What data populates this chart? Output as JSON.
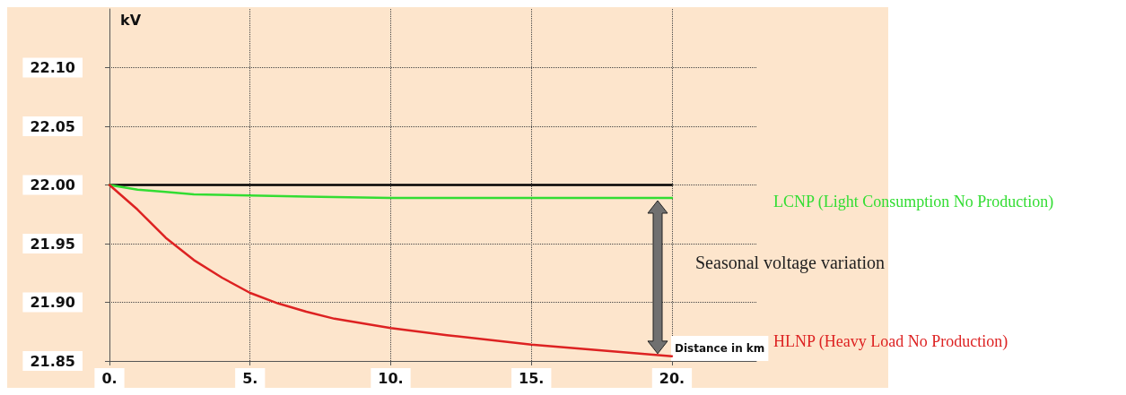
{
  "chart_data": {
    "type": "line",
    "xlabel": "Distance in km",
    "ylabel": "kV",
    "annotations": [
      "Seasonal voltage variation"
    ],
    "xlim": [
      0,
      23
    ],
    "xticks": [
      {
        "value": 0,
        "label": "0."
      },
      {
        "value": 5,
        "label": "5."
      },
      {
        "value": 10,
        "label": "10."
      },
      {
        "value": 15,
        "label": "15."
      },
      {
        "value": 20,
        "label": "20."
      }
    ],
    "ylim": [
      21.85,
      22.15
    ],
    "yticks": [
      {
        "value": 21.85,
        "label": "21.85"
      },
      {
        "value": 21.9,
        "label": "21.90"
      },
      {
        "value": 21.95,
        "label": "21.95"
      },
      {
        "value": 22,
        "label": "22.00"
      },
      {
        "value": 22.05,
        "label": "22.05"
      },
      {
        "value": 22.1,
        "label": "22.10"
      }
    ],
    "grid": true,
    "line_style": "solid",
    "marker": "none",
    "series": [
      {
        "color": "#000000",
        "x": [
          0,
          20
        ],
        "values": [
          22.0,
          22.0
        ]
      },
      {
        "name": "LCNP (Light Consumption No Production)",
        "color": "#33dd33",
        "x": [
          0,
          1,
          2,
          3,
          5,
          7,
          10,
          15,
          20
        ],
        "values": [
          22.0,
          21.996,
          21.994,
          21.992,
          21.991,
          21.99,
          21.989,
          21.989,
          21.989
        ]
      },
      {
        "name": "HLNP (Heavy Load No Production)",
        "color": "#dd2222",
        "x": [
          0,
          1,
          2,
          3,
          4,
          5,
          6,
          7,
          8,
          10,
          12,
          15,
          20
        ],
        "values": [
          22.0,
          21.979,
          21.955,
          21.936,
          21.921,
          21.908,
          21.899,
          21.892,
          21.886,
          21.878,
          21.872,
          21.864,
          21.854
        ]
      }
    ]
  }
}
